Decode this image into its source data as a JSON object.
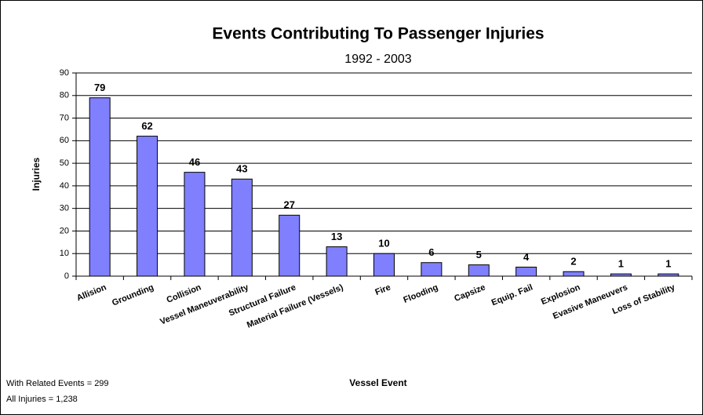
{
  "chart_data": {
    "type": "bar",
    "title": "Events Contributing To Passenger Injuries",
    "subtitle": "1992 - 2003",
    "x_label": "Vessel Event",
    "y_label": "Injuries",
    "categories": [
      "Allision",
      "Grounding",
      "Collision",
      "Vessel Maneuverability",
      "Structural Failure",
      "Material Failure (Vessels)",
      "Fire",
      "Flooding",
      "Capsize",
      "Equip. Fail",
      "Explosion",
      "Evasive Maneuvers",
      "Loss of Stability"
    ],
    "values": [
      79,
      62,
      46,
      43,
      27,
      13,
      10,
      6,
      5,
      4,
      2,
      1,
      1
    ],
    "color": "#8080ff",
    "ylim": [
      0,
      90
    ],
    "yticks": [
      0,
      10,
      20,
      30,
      40,
      50,
      60,
      70,
      80,
      90
    ],
    "grid": true,
    "annotations": [
      "With Related Events = 299",
      "All Injuries = 1,238"
    ]
  }
}
